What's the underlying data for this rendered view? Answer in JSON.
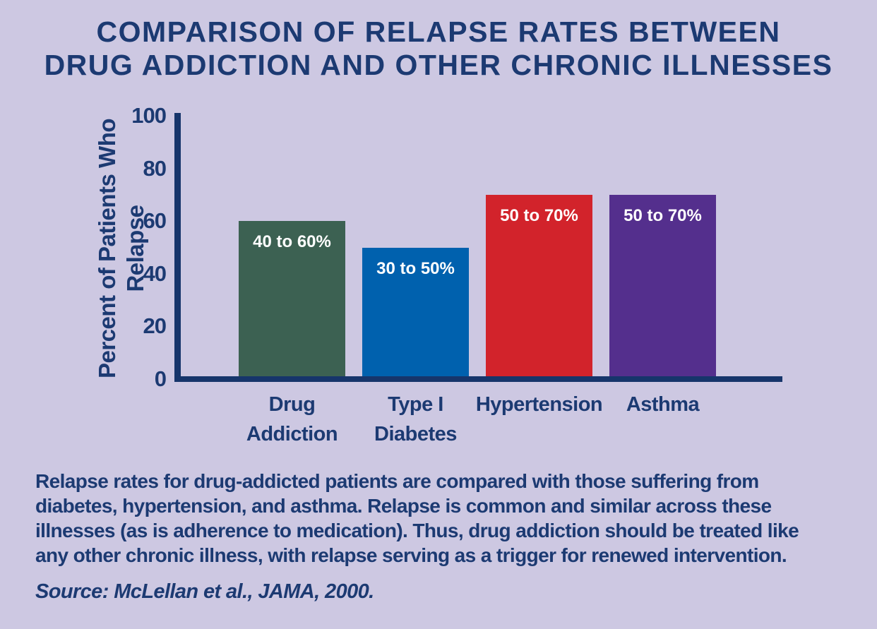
{
  "title": {
    "line1": "COMPARISON OF RELAPSE RATES BETWEEN",
    "line2": "DRUG ADDICTION AND OTHER CHRONIC ILLNESSES"
  },
  "chart_data": {
    "type": "bar",
    "title": "Comparison of Relapse Rates Between Drug Addiction and Other Chronic Illnesses",
    "xlabel": "",
    "ylabel": "Percent of Patients Who Relapse",
    "ylim": [
      0,
      100
    ],
    "yticks": [
      0,
      20,
      40,
      60,
      80,
      100
    ],
    "grid": false,
    "legend": "none",
    "categories": [
      "Drug Addiction",
      "Type I Diabetes",
      "Hypertension",
      "Asthma"
    ],
    "category_lines": [
      [
        "Drug",
        "Addiction"
      ],
      [
        "Type I",
        "Diabetes"
      ],
      [
        "Hypertension"
      ],
      [
        "Asthma"
      ]
    ],
    "values": [
      60,
      50,
      70,
      70
    ],
    "range_low": [
      40,
      30,
      50,
      50
    ],
    "range_high": [
      60,
      50,
      70,
      70
    ],
    "bar_labels": [
      "40 to 60%",
      "30 to 50%",
      "50 to 70%",
      "50 to 70%"
    ],
    "bar_colors": [
      "#3c6152",
      "#0061ae",
      "#d2232b",
      "#542f8d"
    ]
  },
  "caption": {
    "text": "Relapse rates for drug-addicted patients are compared with those suffering from diabetes, hypertension, and asthma. Relapse is common and similar across these illnesses (as is adherence to medication). Thus, drug addiction should be treated like any other chronic illness, with relapse serving as a trigger for renewed intervention.",
    "source": "Source: McLellan et al., JAMA, 2000."
  },
  "colors": {
    "background": "#cdc8e2",
    "text": "#1c3a72",
    "axis": "#16356b",
    "bar_label_text": "#ffffff"
  }
}
